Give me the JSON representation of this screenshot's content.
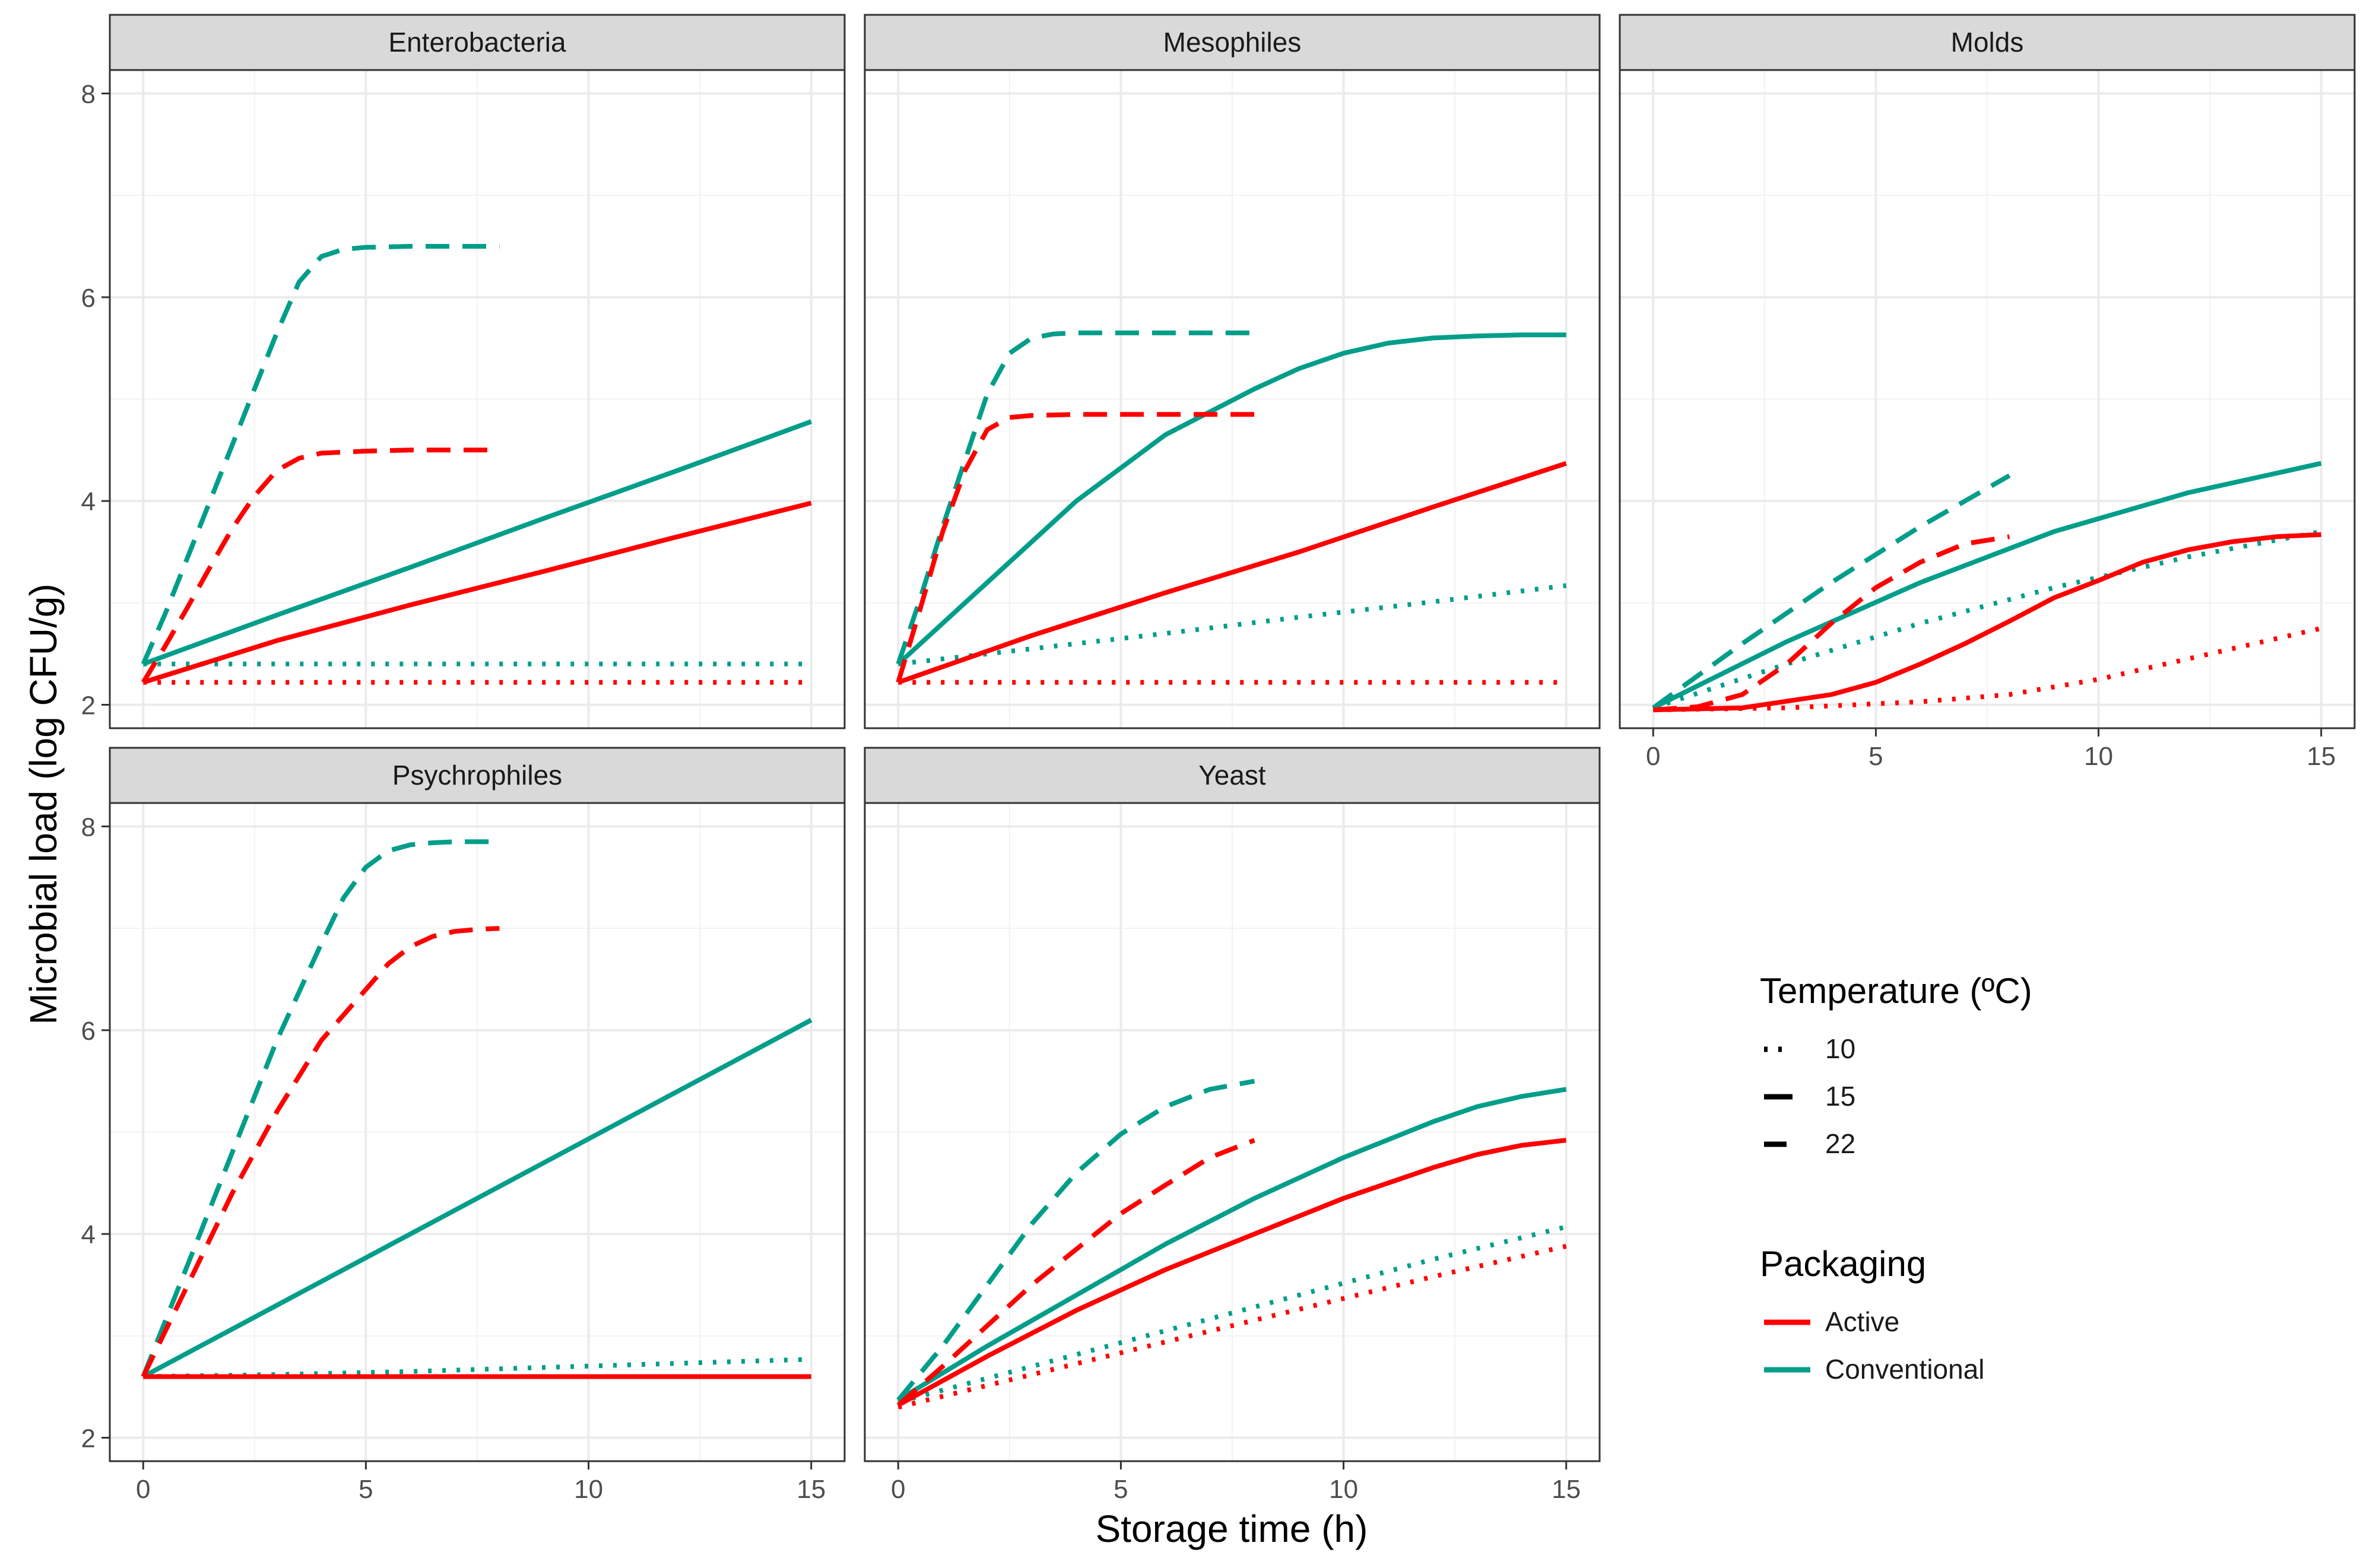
{
  "chart_data": {
    "type": "line",
    "title": "",
    "xlabel": "Storage time (h)",
    "ylabel": "Microbial load (log CFU/g)",
    "xlim": [
      -0.75,
      15.75
    ],
    "ylim": [
      1.77,
      8.23
    ],
    "x_ticks": [
      0,
      5,
      10,
      15
    ],
    "y_ticks": [
      2,
      4,
      6,
      8
    ],
    "grid": true,
    "legend": {
      "position": "right",
      "temperature_title": "Temperature (ºC)",
      "temperature_items": [
        {
          "label": "10",
          "style": "dotted"
        },
        {
          "label": "15",
          "style": "solid"
        },
        {
          "label": "22",
          "style": "dashed"
        }
      ],
      "packaging_title": "Packaging",
      "packaging_items": [
        {
          "label": "Active",
          "color": "#FF0000"
        },
        {
          "label": "Conventional",
          "color": "#009E8A"
        }
      ]
    },
    "colors": {
      "Active": "#FF0000",
      "Conventional": "#009E8A"
    },
    "facets": [
      {
        "name": "Enterobacteria",
        "series": [
          {
            "packaging": "Conventional",
            "temperature": "10",
            "x": [
              0,
              15
            ],
            "y": [
              2.4,
              2.4
            ]
          },
          {
            "packaging": "Active",
            "temperature": "10",
            "x": [
              0,
              15
            ],
            "y": [
              2.22,
              2.22
            ]
          },
          {
            "packaging": "Conventional",
            "temperature": "15",
            "x": [
              0,
              3,
              6,
              9,
              12,
              15
            ],
            "y": [
              2.4,
              2.88,
              3.35,
              3.83,
              4.3,
              4.78
            ]
          },
          {
            "packaging": "Active",
            "temperature": "15",
            "x": [
              0,
              3,
              6,
              9,
              12,
              15
            ],
            "y": [
              2.22,
              2.63,
              2.98,
              3.31,
              3.65,
              3.98
            ]
          },
          {
            "packaging": "Conventional",
            "temperature": "22",
            "x": [
              0,
              0.5,
              1,
              1.5,
              2,
              2.5,
              3,
              3.5,
              4,
              4.5,
              5,
              6,
              7,
              8
            ],
            "y": [
              2.4,
              2.9,
              3.45,
              4.0,
              4.55,
              5.1,
              5.65,
              6.15,
              6.4,
              6.47,
              6.49,
              6.5,
              6.5,
              6.5
            ]
          },
          {
            "packaging": "Active",
            "temperature": "22",
            "x": [
              0,
              0.5,
              1,
              1.5,
              2,
              2.5,
              3,
              3.5,
              4,
              5,
              6,
              7,
              8
            ],
            "y": [
              2.22,
              2.58,
              2.96,
              3.35,
              3.73,
              4.05,
              4.3,
              4.42,
              4.47,
              4.49,
              4.5,
              4.5,
              4.5
            ]
          }
        ]
      },
      {
        "name": "Mesophiles",
        "series": [
          {
            "packaging": "Conventional",
            "temperature": "10",
            "x": [
              0,
              3,
              6,
              9,
              12,
              15
            ],
            "y": [
              2.4,
              2.55,
              2.7,
              2.86,
              3.01,
              3.17
            ]
          },
          {
            "packaging": "Active",
            "temperature": "10",
            "x": [
              0,
              15
            ],
            "y": [
              2.22,
              2.22
            ]
          },
          {
            "packaging": "Conventional",
            "temperature": "15",
            "x": [
              0,
              2,
              4,
              6,
              8,
              9,
              10,
              11,
              12,
              13,
              14,
              15
            ],
            "y": [
              2.4,
              3.2,
              4.0,
              4.65,
              5.1,
              5.3,
              5.45,
              5.55,
              5.6,
              5.62,
              5.63,
              5.63
            ]
          },
          {
            "packaging": "Active",
            "temperature": "15",
            "x": [
              0,
              3,
              6,
              9,
              12,
              15
            ],
            "y": [
              2.22,
              2.68,
              3.1,
              3.5,
              3.94,
              4.37
            ]
          },
          {
            "packaging": "Conventional",
            "temperature": "22",
            "x": [
              0,
              0.5,
              1,
              1.5,
              2,
              2.5,
              3,
              3.5,
              4,
              5,
              6,
              7,
              8
            ],
            "y": [
              2.4,
              3.05,
              3.75,
              4.4,
              5.05,
              5.45,
              5.6,
              5.64,
              5.65,
              5.65,
              5.65,
              5.65,
              5.65
            ]
          },
          {
            "packaging": "Active",
            "temperature": "22",
            "x": [
              0,
              0.5,
              1,
              1.5,
              2,
              2.5,
              3,
              4,
              5,
              6,
              7,
              8
            ],
            "y": [
              2.22,
              2.95,
              3.7,
              4.3,
              4.7,
              4.82,
              4.84,
              4.85,
              4.85,
              4.85,
              4.85,
              4.85
            ]
          }
        ]
      },
      {
        "name": "Molds",
        "series": [
          {
            "packaging": "Conventional",
            "temperature": "10",
            "x": [
              0,
              3,
              6,
              9,
              12,
              15
            ],
            "y": [
              1.97,
              2.4,
              2.8,
              3.15,
              3.45,
              3.7
            ]
          },
          {
            "packaging": "Active",
            "temperature": "10",
            "x": [
              0,
              3,
              6,
              8,
              10,
              12,
              13,
              14,
              15
            ],
            "y": [
              1.95,
              1.97,
              2.03,
              2.1,
              2.25,
              2.45,
              2.55,
              2.65,
              2.75
            ]
          },
          {
            "packaging": "Conventional",
            "temperature": "15",
            "x": [
              0,
              3,
              6,
              9,
              12,
              15
            ],
            "y": [
              1.97,
              2.62,
              3.2,
              3.7,
              4.08,
              4.37
            ]
          },
          {
            "packaging": "Active",
            "temperature": "15",
            "x": [
              0,
              2,
              4,
              5,
              6,
              7,
              8,
              9,
              10,
              11,
              12,
              13,
              14,
              15
            ],
            "y": [
              1.95,
              1.97,
              2.1,
              2.22,
              2.4,
              2.6,
              2.82,
              3.05,
              3.22,
              3.4,
              3.52,
              3.6,
              3.65,
              3.67
            ]
          },
          {
            "packaging": "Conventional",
            "temperature": "22",
            "x": [
              0,
              2,
              4,
              6,
              8
            ],
            "y": [
              1.97,
              2.6,
              3.2,
              3.75,
              4.25
            ]
          },
          {
            "packaging": "Active",
            "temperature": "22",
            "x": [
              0,
              1,
              2,
              3,
              4,
              5,
              6,
              7,
              8
            ],
            "y": [
              1.95,
              1.98,
              2.1,
              2.4,
              2.8,
              3.15,
              3.4,
              3.58,
              3.65
            ]
          }
        ]
      },
      {
        "name": "Psychrophiles",
        "series": [
          {
            "packaging": "Conventional",
            "temperature": "10",
            "x": [
              0,
              3,
              6,
              9,
              12,
              15
            ],
            "y": [
              2.6,
              2.62,
              2.65,
              2.69,
              2.73,
              2.77
            ]
          },
          {
            "packaging": "Active",
            "temperature": "10",
            "x": [
              0,
              15
            ],
            "y": [
              2.6,
              2.6
            ]
          },
          {
            "packaging": "Conventional",
            "temperature": "15",
            "x": [
              0,
              15
            ],
            "y": [
              2.6,
              6.1
            ]
          },
          {
            "packaging": "Active",
            "temperature": "15",
            "x": [
              0,
              15
            ],
            "y": [
              2.6,
              2.6
            ]
          },
          {
            "packaging": "Conventional",
            "temperature": "22",
            "x": [
              0,
              1,
              2,
              3,
              4,
              4.5,
              5,
              5.5,
              6,
              6.5,
              7,
              8
            ],
            "y": [
              2.6,
              3.7,
              4.8,
              5.9,
              6.85,
              7.3,
              7.6,
              7.76,
              7.82,
              7.84,
              7.85,
              7.85
            ]
          },
          {
            "packaging": "Active",
            "temperature": "22",
            "x": [
              0,
              1,
              2,
              3,
              4,
              5,
              5.5,
              6,
              6.5,
              7,
              7.5,
              8
            ],
            "y": [
              2.6,
              3.5,
              4.4,
              5.2,
              5.9,
              6.4,
              6.65,
              6.82,
              6.92,
              6.97,
              6.99,
              7.0
            ]
          }
        ]
      },
      {
        "name": "Yeast",
        "series": [
          {
            "packaging": "Conventional",
            "temperature": "10",
            "x": [
              0,
              3,
              6,
              9,
              12,
              15
            ],
            "y": [
              2.35,
              2.7,
              3.05,
              3.4,
              3.75,
              4.07
            ]
          },
          {
            "packaging": "Active",
            "temperature": "10",
            "x": [
              0,
              3,
              6,
              9,
              12,
              15
            ],
            "y": [
              2.3,
              2.62,
              2.94,
              3.26,
              3.58,
              3.88
            ]
          },
          {
            "packaging": "Conventional",
            "temperature": "15",
            "x": [
              0,
              2,
              4,
              6,
              8,
              10,
              12,
              13,
              14,
              15
            ],
            "y": [
              2.37,
              2.9,
              3.4,
              3.9,
              4.35,
              4.75,
              5.1,
              5.25,
              5.35,
              5.42
            ]
          },
          {
            "packaging": "Active",
            "temperature": "15",
            "x": [
              0,
              2,
              4,
              6,
              8,
              10,
              12,
              13,
              14,
              15
            ],
            "y": [
              2.32,
              2.8,
              3.25,
              3.65,
              4.0,
              4.35,
              4.65,
              4.78,
              4.87,
              4.92
            ]
          },
          {
            "packaging": "Conventional",
            "temperature": "22",
            "x": [
              0,
              1,
              2,
              3,
              4,
              5,
              6,
              7,
              8
            ],
            "y": [
              2.37,
              2.9,
              3.5,
              4.1,
              4.6,
              4.98,
              5.25,
              5.42,
              5.5
            ]
          },
          {
            "packaging": "Active",
            "temperature": "22",
            "x": [
              0,
              1,
              2,
              3,
              4,
              5,
              6,
              7,
              8
            ],
            "y": [
              2.32,
              2.7,
              3.1,
              3.5,
              3.85,
              4.2,
              4.48,
              4.75,
              4.92
            ]
          }
        ]
      }
    ]
  }
}
